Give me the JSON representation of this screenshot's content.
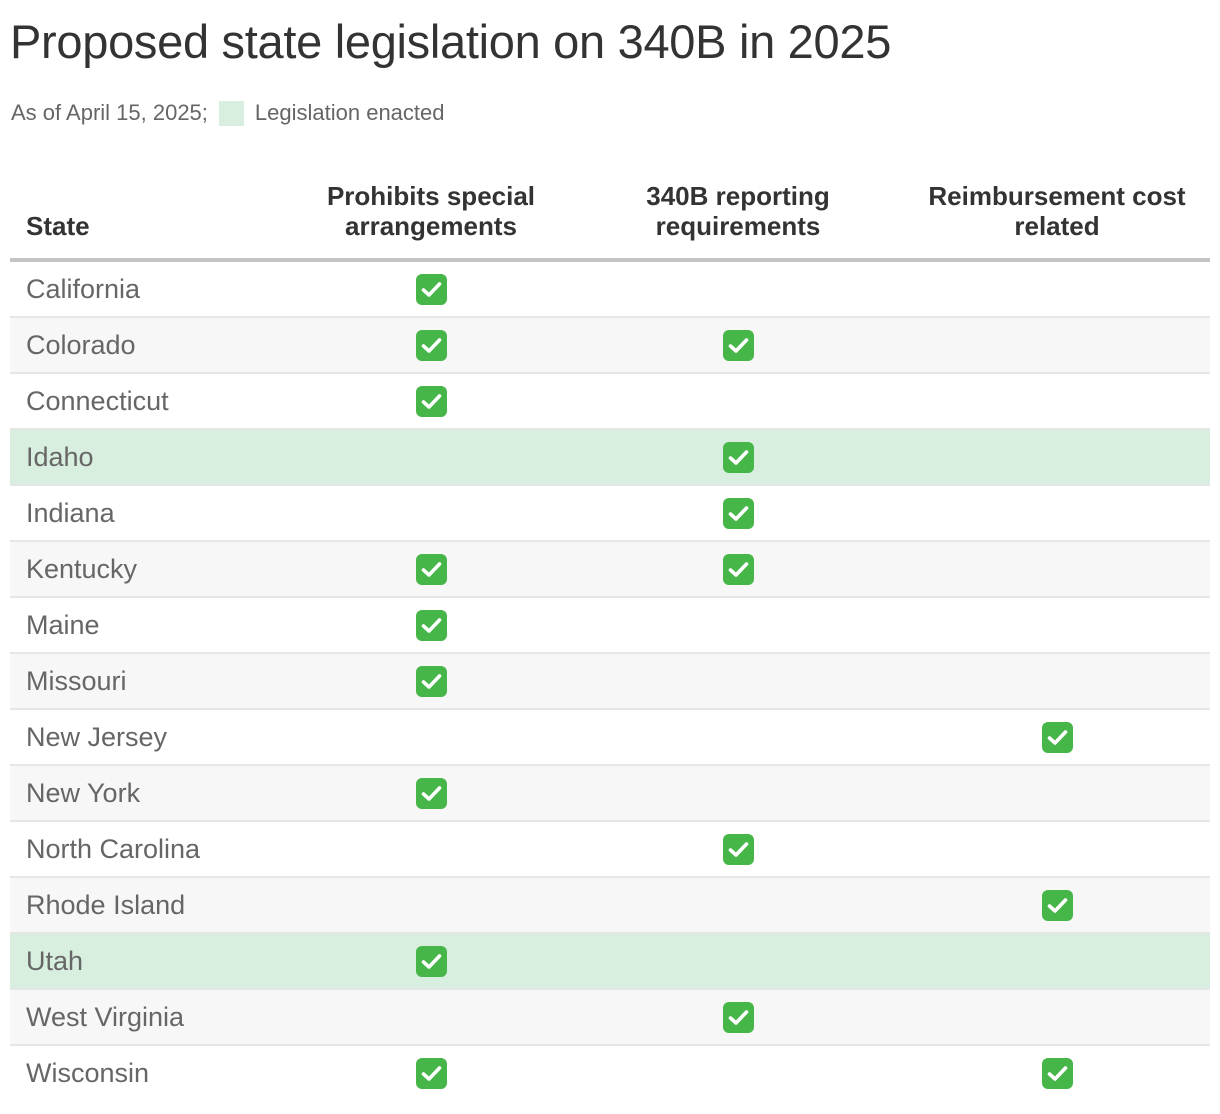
{
  "title": "Proposed state legislation on 340B in 2025",
  "subtitle": {
    "date_note": "As of April 15, 2025;",
    "legend_label": "Legislation enacted",
    "legend_color": "#d8efdf"
  },
  "colors": {
    "enacted_row": "#d8efdf",
    "alt_row": "#f7f7f7",
    "check": "#47b648"
  },
  "check_icon": "check-mark-button-icon",
  "chart_data": {
    "type": "table",
    "columns": [
      "State",
      "Prohibits special arrangements",
      "340B reporting requirements",
      "Reimbursement cost related"
    ],
    "rows": [
      {
        "state": "California",
        "prohibits_special_arrangements": true,
        "reporting_requirements": false,
        "reimbursement_cost_related": false,
        "enacted": false
      },
      {
        "state": "Colorado",
        "prohibits_special_arrangements": true,
        "reporting_requirements": true,
        "reimbursement_cost_related": false,
        "enacted": false
      },
      {
        "state": "Connecticut",
        "prohibits_special_arrangements": true,
        "reporting_requirements": false,
        "reimbursement_cost_related": false,
        "enacted": false
      },
      {
        "state": "Idaho",
        "prohibits_special_arrangements": false,
        "reporting_requirements": true,
        "reimbursement_cost_related": false,
        "enacted": true
      },
      {
        "state": "Indiana",
        "prohibits_special_arrangements": false,
        "reporting_requirements": true,
        "reimbursement_cost_related": false,
        "enacted": false
      },
      {
        "state": "Kentucky",
        "prohibits_special_arrangements": true,
        "reporting_requirements": true,
        "reimbursement_cost_related": false,
        "enacted": false
      },
      {
        "state": "Maine",
        "prohibits_special_arrangements": true,
        "reporting_requirements": false,
        "reimbursement_cost_related": false,
        "enacted": false
      },
      {
        "state": "Missouri",
        "prohibits_special_arrangements": true,
        "reporting_requirements": false,
        "reimbursement_cost_related": false,
        "enacted": false
      },
      {
        "state": "New Jersey",
        "prohibits_special_arrangements": false,
        "reporting_requirements": false,
        "reimbursement_cost_related": true,
        "enacted": false
      },
      {
        "state": "New York",
        "prohibits_special_arrangements": true,
        "reporting_requirements": false,
        "reimbursement_cost_related": false,
        "enacted": false
      },
      {
        "state": "North Carolina",
        "prohibits_special_arrangements": false,
        "reporting_requirements": true,
        "reimbursement_cost_related": false,
        "enacted": false
      },
      {
        "state": "Rhode Island",
        "prohibits_special_arrangements": false,
        "reporting_requirements": false,
        "reimbursement_cost_related": true,
        "enacted": false
      },
      {
        "state": "Utah",
        "prohibits_special_arrangements": true,
        "reporting_requirements": false,
        "reimbursement_cost_related": false,
        "enacted": true
      },
      {
        "state": "West Virginia",
        "prohibits_special_arrangements": false,
        "reporting_requirements": true,
        "reimbursement_cost_related": false,
        "enacted": false
      },
      {
        "state": "Wisconsin",
        "prohibits_special_arrangements": true,
        "reporting_requirements": false,
        "reimbursement_cost_related": true,
        "enacted": false
      }
    ]
  }
}
